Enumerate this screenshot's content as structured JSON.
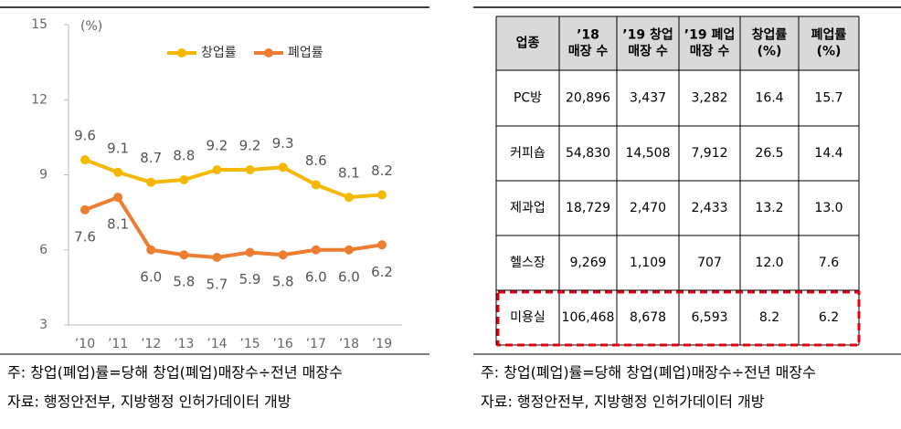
{
  "chart_data": {
    "type": "line",
    "unit_label": "(%)",
    "categories": [
      "’10",
      "’11",
      "’12",
      "’13",
      "’14",
      "’15",
      "’16",
      "’17",
      "’18",
      "’19"
    ],
    "series": [
      {
        "name": "창업률",
        "color": "#f5b800",
        "values": [
          9.6,
          9.1,
          8.7,
          8.8,
          9.2,
          9.2,
          9.3,
          8.6,
          8.1,
          8.2
        ],
        "value_labels": [
          "9.6",
          "9.1",
          "8.7",
          "8.8",
          "9.2",
          "9.2",
          "9.3",
          "8.6",
          "8.1",
          "8.2"
        ]
      },
      {
        "name": "폐업률",
        "color": "#ed7d31",
        "values": [
          7.6,
          8.1,
          6.0,
          5.8,
          5.7,
          5.9,
          5.8,
          6.0,
          6.0,
          6.2
        ],
        "value_labels": [
          "7.6",
          "8.1",
          "6.0",
          "5.8",
          "5.7",
          "5.9",
          "5.8",
          "6.0",
          "6.0",
          "6.2"
        ]
      }
    ],
    "ylim": [
      3,
      15
    ],
    "yticks": [
      3,
      6,
      9,
      12,
      15
    ],
    "grid": false,
    "legend": "top",
    "notes": [
      "주: 창업(폐업)률=당해 창업(폐업)매장수÷전년 매장수",
      "자료: 행정안전부, 지방행정 인허가데이터 개방"
    ]
  },
  "table": {
    "header": [
      [
        "업종"
      ],
      [
        "’18",
        "매장 수"
      ],
      [
        "’19 창업",
        "매장 수"
      ],
      [
        "’19 폐업",
        "매장 수"
      ],
      [
        "창업률",
        "(%)"
      ],
      [
        "폐업률",
        "(%)"
      ]
    ],
    "rows": [
      [
        "PC방",
        "20,896",
        "3,437",
        "3,282",
        "16.4",
        "15.7"
      ],
      [
        "커피숍",
        "54,830",
        "14,508",
        "7,912",
        "26.5",
        "14.4"
      ],
      [
        "제과업",
        "18,729",
        "2,470",
        "2,433",
        "13.2",
        "13.0"
      ],
      [
        "헬스장",
        "9,269",
        "1,109",
        "707",
        "12.0",
        "7.6"
      ],
      [
        "미용실",
        "106,468",
        "8,678",
        "6,593",
        "8.2",
        "6.2"
      ]
    ],
    "notes": [
      "주: 창업(폐업)률=당해 창업(폐업)매장수÷전년 매장수",
      "자료: 행정안전부, 지방행정 인허가데이터 개방"
    ]
  }
}
